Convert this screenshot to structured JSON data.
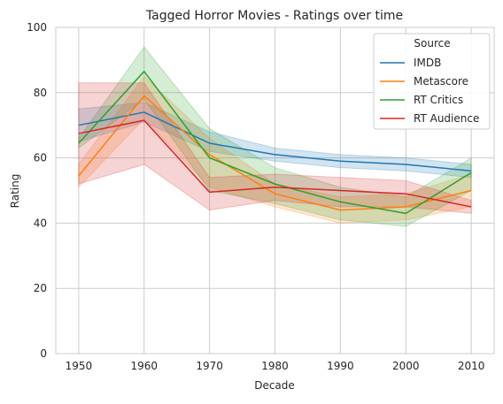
{
  "chart_data": {
    "type": "line",
    "title": "Tagged Horror Movies - Ratings over time",
    "xlabel": "Decade",
    "ylabel": "Rating",
    "x": [
      1950,
      1960,
      1970,
      1980,
      1990,
      2000,
      2010
    ],
    "x_ticks": [
      "1950",
      "1960",
      "1970",
      "1980",
      "1990",
      "2000",
      "2010"
    ],
    "ylim": [
      0,
      100
    ],
    "y_ticks": [
      "0",
      "20",
      "40",
      "60",
      "80",
      "100"
    ],
    "grid": true,
    "legend_title": "Source",
    "legend_position": "top-right",
    "series": [
      {
        "name": "IMDB",
        "color": "#1f77b4",
        "values": [
          70,
          74,
          64.5,
          61,
          59,
          58,
          56
        ],
        "ci_low": [
          65,
          71,
          62,
          59,
          57,
          56,
          54
        ],
        "ci_high": [
          75,
          77,
          68,
          63,
          61,
          60,
          58
        ]
      },
      {
        "name": "Metascore",
        "color": "#ff7f0e",
        "values": [
          54.5,
          79,
          61,
          49,
          44,
          45,
          50
        ],
        "ci_low": [
          51,
          72,
          51,
          45,
          40,
          41,
          45
        ],
        "ci_high": [
          58,
          85,
          66,
          52,
          48,
          49,
          55
        ]
      },
      {
        "name": "RT Critics",
        "color": "#2ca02c",
        "values": [
          64.5,
          86.5,
          60,
          52,
          46.5,
          43,
          55.5
        ],
        "ci_low": [
          63,
          78,
          50,
          46,
          41,
          39,
          50
        ],
        "ci_high": [
          66,
          94,
          69,
          57,
          51,
          48,
          60
        ]
      },
      {
        "name": "RT Audience",
        "color": "#d62728",
        "values": [
          67.5,
          71.5,
          49.5,
          51,
          50,
          49,
          45
        ],
        "ci_low": [
          52,
          58,
          44,
          47,
          45,
          45,
          43
        ],
        "ci_high": [
          83,
          83,
          54,
          55,
          54,
          53,
          47
        ]
      }
    ]
  }
}
